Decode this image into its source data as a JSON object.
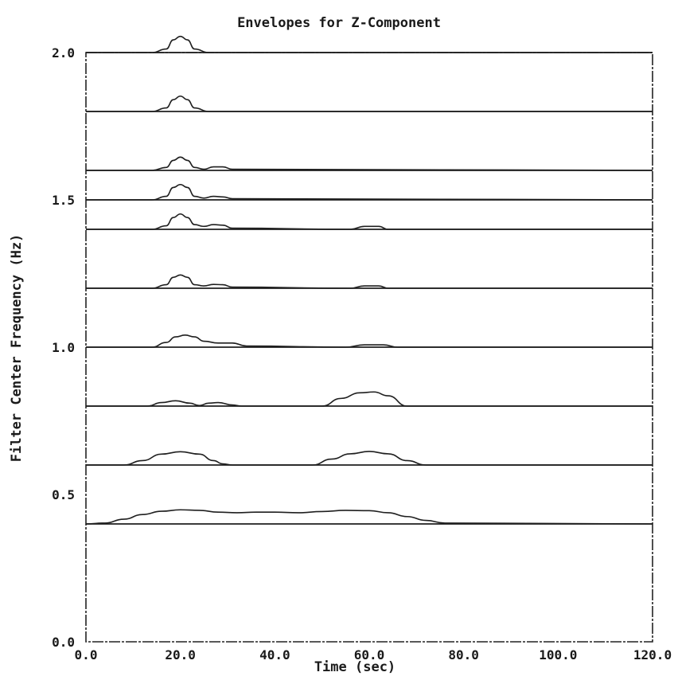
{
  "chart_data": {
    "type": "line",
    "title": "Envelopes for Z-Component",
    "xlabel": "Time (sec)",
    "ylabel": "Filter Center Frequency (Hz)",
    "xlim": [
      0,
      120
    ],
    "ylim": [
      0,
      2
    ],
    "x_ticks": [
      "0.0",
      "20.0",
      "40.0",
      "60.0",
      "80.0",
      "100.0",
      "120.0"
    ],
    "y_ticks": [
      "0.0",
      "0.5",
      "1.0",
      "1.5",
      "2.0"
    ],
    "grid": false,
    "series": [
      {
        "baseline": 2.0,
        "x": [
          0,
          14,
          17,
          18.5,
          20,
          21.5,
          23,
          26,
          120
        ],
        "y": [
          2.0,
          2.0,
          2.012,
          2.043,
          2.055,
          2.043,
          2.012,
          2.0,
          2.0
        ]
      },
      {
        "baseline": 1.8,
        "x": [
          0,
          14,
          17,
          18.5,
          20,
          21.5,
          23,
          26,
          120
        ],
        "y": [
          1.8,
          1.8,
          1.812,
          1.84,
          1.852,
          1.84,
          1.812,
          1.8,
          1.8
        ]
      },
      {
        "baseline": 1.6,
        "x": [
          0,
          14,
          17,
          18.5,
          20,
          21.5,
          23,
          25,
          27,
          29,
          31,
          120
        ],
        "y": [
          1.6,
          1.6,
          1.61,
          1.634,
          1.645,
          1.634,
          1.61,
          1.604,
          1.612,
          1.612,
          1.604,
          1.6
        ]
      },
      {
        "baseline": 1.5,
        "x": [
          0,
          14,
          17,
          18.5,
          20,
          21.5,
          23,
          25,
          27,
          29,
          31,
          120
        ],
        "y": [
          1.5,
          1.5,
          1.512,
          1.542,
          1.552,
          1.542,
          1.512,
          1.506,
          1.512,
          1.51,
          1.504,
          1.5
        ]
      },
      {
        "baseline": 1.4,
        "x": [
          0,
          14,
          17,
          18.5,
          20,
          21.5,
          23,
          25,
          27,
          29,
          31,
          56,
          59,
          62,
          64,
          120
        ],
        "y": [
          1.4,
          1.4,
          1.412,
          1.44,
          1.452,
          1.44,
          1.416,
          1.41,
          1.416,
          1.414,
          1.404,
          1.4,
          1.41,
          1.41,
          1.4,
          1.4
        ]
      },
      {
        "baseline": 1.2,
        "x": [
          0,
          14,
          17,
          18.5,
          20,
          21.5,
          23,
          25,
          27,
          29,
          31,
          56,
          59,
          62,
          64,
          120
        ],
        "y": [
          1.2,
          1.2,
          1.212,
          1.237,
          1.245,
          1.237,
          1.212,
          1.208,
          1.213,
          1.212,
          1.204,
          1.2,
          1.208,
          1.208,
          1.2,
          1.2
        ]
      },
      {
        "baseline": 1.0,
        "x": [
          0,
          14,
          17,
          19,
          21,
          23,
          25,
          28,
          31,
          34,
          55,
          59,
          63,
          66,
          120
        ],
        "y": [
          1.0,
          1.0,
          1.016,
          1.035,
          1.041,
          1.035,
          1.02,
          1.014,
          1.014,
          1.004,
          1.0,
          1.008,
          1.008,
          1.0,
          1.0
        ]
      },
      {
        "baseline": 0.8,
        "x": [
          0,
          13,
          16,
          19,
          22,
          24,
          26,
          28,
          31,
          33,
          50,
          54,
          58,
          61,
          64,
          68,
          120
        ],
        "y": [
          0.8,
          0.8,
          0.812,
          0.818,
          0.81,
          0.802,
          0.81,
          0.812,
          0.804,
          0.8,
          0.8,
          0.826,
          0.845,
          0.848,
          0.835,
          0.8,
          0.8
        ]
      },
      {
        "baseline": 0.6,
        "x": [
          0,
          8,
          12,
          16,
          20,
          24,
          27,
          29,
          31,
          40,
          48,
          52,
          56,
          60,
          64,
          68,
          72,
          76,
          120
        ],
        "y": [
          0.6,
          0.6,
          0.615,
          0.637,
          0.645,
          0.637,
          0.615,
          0.604,
          0.6,
          0.6,
          0.6,
          0.62,
          0.638,
          0.646,
          0.638,
          0.615,
          0.6,
          0.6,
          0.6
        ]
      },
      {
        "baseline": 0.4,
        "x": [
          0,
          4,
          8,
          12,
          16,
          20,
          24,
          28,
          32,
          36,
          40,
          45,
          50,
          55,
          60,
          64,
          68,
          72,
          76,
          120
        ],
        "y": [
          0.4,
          0.403,
          0.416,
          0.432,
          0.443,
          0.448,
          0.446,
          0.44,
          0.438,
          0.44,
          0.44,
          0.438,
          0.442,
          0.446,
          0.445,
          0.438,
          0.425,
          0.412,
          0.403,
          0.4
        ]
      }
    ]
  }
}
